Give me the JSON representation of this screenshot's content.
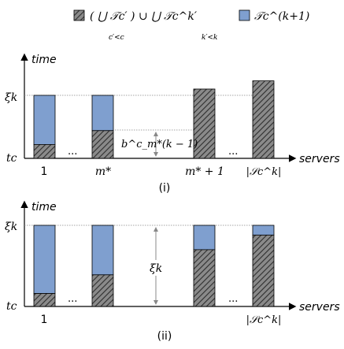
{
  "legend": {
    "item1_label": "( ⋃ 𝒯c′ ) ∪ ⋃ 𝒯c^k′",
    "item1_sub_left": "c′<c",
    "item1_sub_right": "k′<k",
    "item2_label": "𝒯c^(k+1)",
    "hatch_color": "#555555",
    "blue_color": "#7f9fcf"
  },
  "panel_i": {
    "caption": "(i)",
    "y_axis_label": "time",
    "x_axis_label": "servers",
    "y_top_label": "ξk",
    "y_bottom_label": "tc",
    "ellipsis": "...",
    "x_labels": [
      "1",
      "m*",
      "m* + 1",
      "|𝒮c^k|"
    ],
    "annotation": "b^c_m*(k − 1)",
    "bars": [
      {
        "hatched": 0.22,
        "blue": 0.78
      },
      {
        "hatched": 0.44,
        "blue": 0.56
      },
      {
        "hatched": 1.1,
        "blue": 0
      },
      {
        "hatched": 1.23,
        "blue": 0
      }
    ]
  },
  "panel_ii": {
    "caption": "(ii)",
    "y_axis_label": "time",
    "x_axis_label": "servers",
    "y_top_label": "ξk",
    "y_bottom_label": "tc",
    "ellipsis": "...",
    "x_labels": [
      "1",
      "|𝒮c^k|"
    ],
    "annotation": "ξk",
    "bars": [
      {
        "hatched": 0.16,
        "blue": 0.84
      },
      {
        "hatched": 0.39,
        "blue": 0.61
      },
      {
        "hatched": 0.7,
        "blue": 0.3
      },
      {
        "hatched": 0.88,
        "blue": 0.12
      }
    ]
  }
}
